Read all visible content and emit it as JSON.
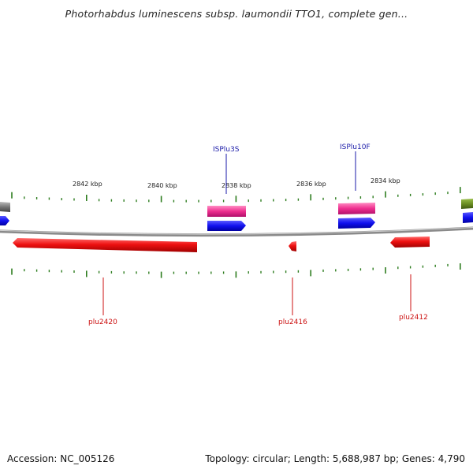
{
  "title": "Photorhabdus luminescens subsp. laumondii TTO1, complete gen...",
  "footer": {
    "accession": "Accession: NC_005126",
    "summary": "Topology: circular; Length: 5,688,987 bp; Genes: 4,790"
  },
  "colors": {
    "backbone": "#8a8a8a",
    "tick": "#2e7d1f",
    "gene": "#ee1111",
    "is_element": "#ee2f8f",
    "cds": "#1010ee",
    "other_grey": "#777777",
    "other_olive": "#6b8e23",
    "label_blue": "#1a1aa8",
    "label_red": "#cc1111"
  },
  "scale": {
    "ticks": [
      {
        "label": "2842 kbp"
      },
      {
        "label": "2840 kbp"
      },
      {
        "label": "2838 kbp"
      },
      {
        "label": "2836 kbp"
      },
      {
        "label": "2834 kbp"
      }
    ]
  },
  "features": {
    "is_elements": [
      {
        "label": "ISPlu3S"
      },
      {
        "label": "ISPlu10F"
      }
    ],
    "genes": [
      {
        "label": "plu2420"
      },
      {
        "label": "plu2416"
      },
      {
        "label": "plu2412"
      }
    ]
  }
}
